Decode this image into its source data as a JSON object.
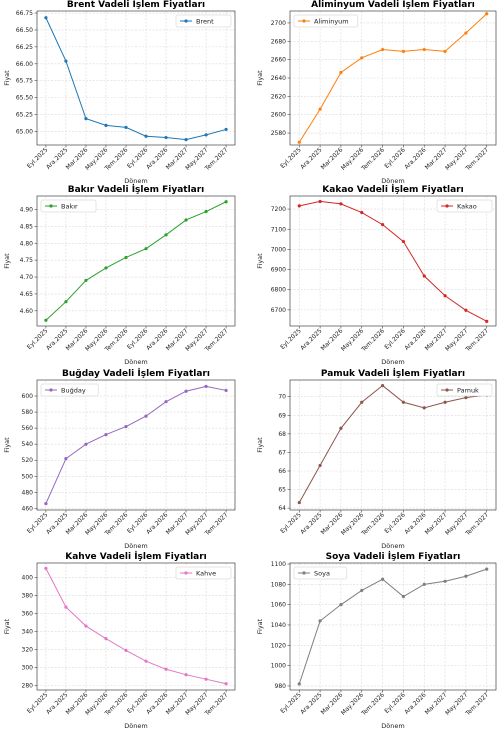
{
  "chart_data": [
    {
      "type": "line",
      "title": "Brent Vadeli İşlem Fiyatları",
      "xlabel": "Dönem",
      "ylabel": "Fiyat",
      "categories": [
        "Eyl.2025",
        "Ara.2025",
        "Mar.2026",
        "May.2026",
        "Tem.2026",
        "Eyl.2026",
        "Ara.2026",
        "Mar.2027",
        "May.2027",
        "Tem.2027"
      ],
      "series": [
        {
          "name": "Brent",
          "color": "#1f77b4",
          "values": [
            66.68,
            66.04,
            65.19,
            65.09,
            65.06,
            64.93,
            64.91,
            64.88,
            64.95,
            65.03
          ]
        }
      ],
      "yticks": [
        65.0,
        65.25,
        65.5,
        65.75,
        66.0,
        66.25,
        66.5,
        66.75
      ],
      "ytick_labels": [
        "65.00",
        "65.25",
        "65.50",
        "65.75",
        "66.00",
        "66.25",
        "66.50",
        "66.75"
      ],
      "ylim": [
        64.8,
        66.78
      ],
      "grid": true,
      "legend": "top-right"
    },
    {
      "type": "line",
      "title": "Aliminyum Vadeli İşlem Fiyatları",
      "xlabel": "Dönem",
      "ylabel": "Fiyat",
      "categories": [
        "Eyl.2025",
        "Ara.2025",
        "Mar.2026",
        "May.2026",
        "Tem.2026",
        "Eyl.2026",
        "Ara.2026",
        "Mar.2027",
        "May.2027",
        "Tem.2027"
      ],
      "series": [
        {
          "name": "Aliminyum",
          "color": "#ff7f0e",
          "values": [
            2570,
            2606,
            2646,
            2662,
            2671,
            2669,
            2671,
            2669,
            2689,
            2710
          ]
        }
      ],
      "yticks": [
        2580,
        2600,
        2620,
        2640,
        2660,
        2680,
        2700
      ],
      "ytick_labels": [
        "2580",
        "2600",
        "2620",
        "2640",
        "2660",
        "2680",
        "2700"
      ],
      "ylim": [
        2567,
        2713
      ],
      "grid": true,
      "legend": "top-left"
    },
    {
      "type": "line",
      "title": "Bakır Vadeli İşlem Fiyatları",
      "xlabel": "Dönem",
      "ylabel": "Fiyat",
      "categories": [
        "Eyl.2025",
        "Ara.2025",
        "Mar.2026",
        "May.2026",
        "Tem.2026",
        "Eyl.2026",
        "Ara.2026",
        "Mar.2027",
        "May.2027",
        "Tem.2027"
      ],
      "series": [
        {
          "name": "Bakır",
          "color": "#2ca02c",
          "values": [
            4.572,
            4.627,
            4.69,
            4.727,
            4.758,
            4.784,
            4.825,
            4.869,
            4.894,
            4.923
          ]
        }
      ],
      "yticks": [
        4.6,
        4.65,
        4.7,
        4.75,
        4.8,
        4.85,
        4.9
      ],
      "ytick_labels": [
        "4.60",
        "4.65",
        "4.70",
        "4.75",
        "4.80",
        "4.85",
        "4.90"
      ],
      "ylim": [
        4.555,
        4.94
      ],
      "grid": true,
      "legend": "top-left"
    },
    {
      "type": "line",
      "title": "Kakao Vadeli İşlem Fiyatları",
      "xlabel": "Dönem",
      "ylabel": "Fiyat",
      "categories": [
        "Eyl.2025",
        "Ara.2025",
        "Mar.2026",
        "May.2026",
        "Tem.2026",
        "Eyl.2026",
        "Ara.2026",
        "Mar.2027",
        "May.2027",
        "Tem.2027"
      ],
      "series": [
        {
          "name": "Kakao",
          "color": "#d62728",
          "values": [
            7216,
            7238,
            7226,
            7183,
            7123,
            7039,
            6868,
            6770,
            6698,
            6643
          ]
        }
      ],
      "yticks": [
        6700,
        6800,
        6900,
        7000,
        7100,
        7200
      ],
      "ytick_labels": [
        "6700",
        "6800",
        "6900",
        "7000",
        "7100",
        "7200"
      ],
      "ylim": [
        6620,
        7265
      ],
      "grid": true,
      "legend": "top-right"
    },
    {
      "type": "line",
      "title": "Buğday Vadeli İşlem Fiyatları",
      "xlabel": "Dönem",
      "ylabel": "Fiyat",
      "categories": [
        "Eyl.2025",
        "Ara.2025",
        "Mar.2026",
        "May.2026",
        "Tem.2026",
        "Eyl.2026",
        "Ara.2026",
        "Mar.2027",
        "May.2027",
        "Tem.2027"
      ],
      "series": [
        {
          "name": "Buğday",
          "color": "#9467bd",
          "values": [
            466,
            522,
            540,
            552,
            562,
            575,
            593,
            606,
            612,
            607
          ]
        }
      ],
      "yticks": [
        460,
        480,
        500,
        520,
        540,
        560,
        580,
        600
      ],
      "ytick_labels": [
        "460",
        "480",
        "500",
        "520",
        "540",
        "560",
        "580",
        "600"
      ],
      "ylim": [
        458,
        620
      ],
      "grid": true,
      "legend": "top-left"
    },
    {
      "type": "line",
      "title": "Pamuk Vadeli İşlem Fiyatları",
      "xlabel": "Dönem",
      "ylabel": "Fiyat",
      "categories": [
        "Eyl.2025",
        "Ara.2025",
        "Mar.2026",
        "May.2026",
        "Tem.2026",
        "Eyl.2026",
        "Ara.2026",
        "Mar.2027",
        "May.2027",
        "Tem.2027"
      ],
      "series": [
        {
          "name": "Pamuk",
          "color": "#8c564b",
          "values": [
            64.3,
            66.3,
            68.3,
            69.7,
            70.6,
            69.7,
            69.4,
            69.7,
            69.95,
            70.1
          ]
        }
      ],
      "yticks": [
        64,
        65,
        66,
        67,
        68,
        69,
        70
      ],
      "ytick_labels": [
        "64",
        "65",
        "66",
        "67",
        "68",
        "69",
        "70"
      ],
      "ylim": [
        63.9,
        70.9
      ],
      "grid": true,
      "legend": "top-right"
    },
    {
      "type": "line",
      "title": "Kahve Vadeli İşlem Fiyatları",
      "xlabel": "Dönem",
      "ylabel": "Fiyat",
      "categories": [
        "Eyl.2025",
        "Ara.2025",
        "Mar.2026",
        "May.2026",
        "Tem.2026",
        "Eyl.2026",
        "Ara.2026",
        "Mar.2027",
        "May.2027",
        "Tem.2027"
      ],
      "series": [
        {
          "name": "Kahve",
          "color": "#e377c2",
          "values": [
            410,
            367,
            346,
            332,
            319,
            307,
            298,
            292,
            287,
            282
          ]
        }
      ],
      "yticks": [
        280,
        300,
        320,
        340,
        360,
        380,
        400
      ],
      "ytick_labels": [
        "280",
        "300",
        "320",
        "340",
        "360",
        "380",
        "400"
      ],
      "ylim": [
        275,
        416
      ],
      "grid": true,
      "legend": "top-right"
    },
    {
      "type": "line",
      "title": "Soya Vadeli İşlem Fiyatları",
      "xlabel": "Dönem",
      "ylabel": "Fiyat",
      "categories": [
        "Eyl.2025",
        "Ara.2025",
        "Mar.2026",
        "May.2026",
        "Tem.2026",
        "Eyl.2026",
        "Ara.2026",
        "Mar.2027",
        "May.2027",
        "Tem.2027"
      ],
      "series": [
        {
          "name": "Soya",
          "color": "#7f7f7f",
          "values": [
            982,
            1044,
            1060,
            1074,
            1085,
            1068,
            1080,
            1083,
            1088,
            1095
          ]
        }
      ],
      "yticks": [
        980,
        1000,
        1020,
        1040,
        1060,
        1080,
        1100
      ],
      "ytick_labels": [
        "980",
        "1000",
        "1020",
        "1040",
        "1060",
        "1080",
        "1100"
      ],
      "ylim": [
        976,
        1101
      ],
      "grid": true,
      "legend": "top-left"
    }
  ]
}
